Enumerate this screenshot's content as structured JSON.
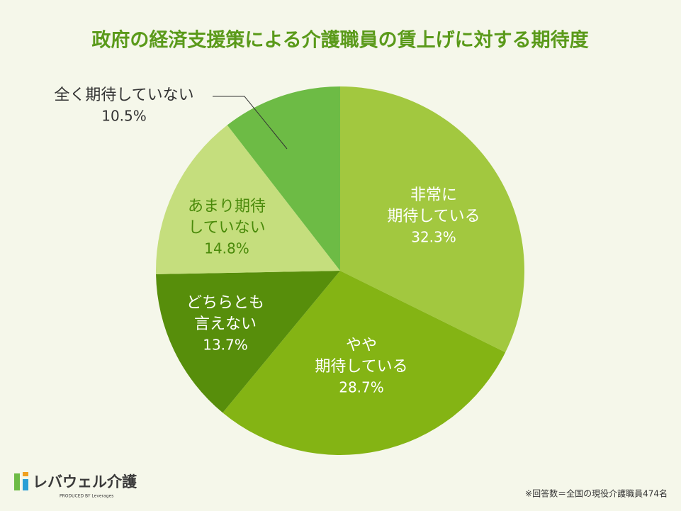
{
  "chart_data": {
    "type": "pie",
    "title": "政府の経済支援策による介護職員の賃上げに対する期待度",
    "categories": [
      [
        "非常に",
        "期待している"
      ],
      [
        "やや",
        "期待している"
      ],
      [
        "どちらとも",
        "言えない"
      ],
      [
        "あまり期待",
        "していない"
      ],
      [
        "全く期待していない"
      ]
    ],
    "values": [
      32.3,
      28.7,
      13.7,
      14.8,
      10.5
    ],
    "value_labels": [
      "32.3%",
      "28.7%",
      "13.7%",
      "14.8%",
      "10.5%"
    ],
    "colors": [
      "#a2c83f",
      "#84b414",
      "#578e0b",
      "#c5de7d",
      "#6dbb45"
    ],
    "note": "※回答数＝全国の現役介護職員474名",
    "logo": {
      "name": "レバウェル介護",
      "tagline": "PRODUCED BY Leverages"
    }
  }
}
